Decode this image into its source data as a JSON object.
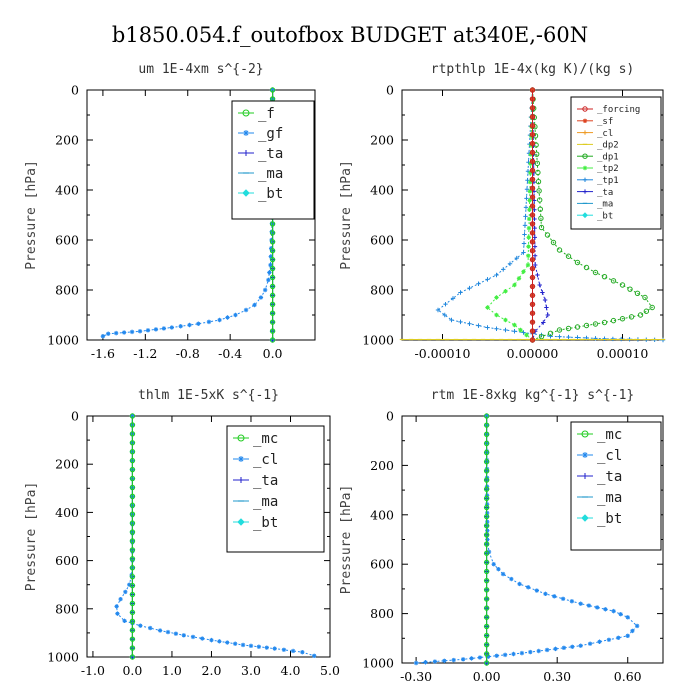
{
  "figure_title": "b1850.054.f_outofbox  BUDGET at340E,-60N",
  "chart_data": [
    {
      "type": "line",
      "title": "um  1E-4xm s^{-2}",
      "ylabel": "Pressure [hPa]",
      "xlim": [
        -1.75,
        0.4
      ],
      "ylim": [
        1000,
        0
      ],
      "xticks": [
        -1.6,
        -1.2,
        -0.8,
        -0.4,
        0.0
      ],
      "xtick_labels": [
        "-1.6",
        "-1.2",
        "-0.8",
        "-0.4",
        "0.0"
      ],
      "yticks": [
        0,
        200,
        400,
        600,
        800,
        1000
      ],
      "ytick_labels": [
        "0",
        "200",
        "400",
        "600",
        "800",
        "1000"
      ],
      "legend_position": "top-right",
      "legend_font": 14,
      "series": [
        {
          "name": "_f",
          "color": "#22cc22",
          "marker": "circle",
          "x": [
            0,
            0
          ],
          "p": [
            0,
            1000
          ]
        },
        {
          "name": "_gf",
          "color": "#2288ee",
          "marker": "star",
          "x": [
            0,
            -0.003,
            -0.01,
            -0.02,
            -0.04,
            -0.07,
            -0.11,
            -0.17,
            -0.25,
            -0.35,
            -0.5,
            -0.7,
            -0.95,
            -1.25,
            -1.55,
            -1.6
          ],
          "p": [
            0,
            500,
            600,
            700,
            760,
            800,
            830,
            860,
            880,
            900,
            920,
            935,
            950,
            965,
            975,
            985
          ]
        },
        {
          "name": "_ta",
          "color": "#2222cc",
          "marker": "plus",
          "x": [
            0,
            0
          ],
          "p": [
            0,
            1000
          ]
        },
        {
          "name": "_ma",
          "color": "#2299cc",
          "marker": "dash",
          "x": [
            0,
            0
          ],
          "p": [
            0,
            1000
          ]
        },
        {
          "name": "_bt",
          "color": "#22dddd",
          "marker": "diamond",
          "x": [
            0,
            0
          ],
          "p": [
            0,
            1000
          ]
        }
      ]
    },
    {
      "type": "line",
      "title": "rtpthlp  1E-4x(kg K)/(kg s)",
      "ylabel": "Pressure [hPa]",
      "xlim": [
        -0.000145,
        0.000145
      ],
      "ylim": [
        1000,
        0
      ],
      "xticks": [
        -0.0001,
        0,
        0.0001
      ],
      "xtick_labels": [
        "-0.00010",
        "0.00000",
        "0.00010"
      ],
      "yticks": [
        0,
        200,
        400,
        600,
        800,
        1000
      ],
      "ytick_labels": [
        "0",
        "200",
        "400",
        "600",
        "800",
        "1000"
      ],
      "legend_position": "top-right",
      "legend_font": 9,
      "series": [
        {
          "name": "_forcing",
          "color": "#cc2222",
          "marker": "circle",
          "x": [
            0,
            0
          ],
          "p": [
            0,
            1000
          ]
        },
        {
          "name": "_sf",
          "color": "#dd4422",
          "marker": "star",
          "x": [
            0,
            0
          ],
          "p": [
            0,
            1000
          ]
        },
        {
          "name": "_cl",
          "color": "#ee9922",
          "marker": "plus",
          "x": [
            0,
            0
          ],
          "p": [
            0,
            1000
          ]
        },
        {
          "name": "_dp2",
          "color": "#ddcc22",
          "marker": "dash",
          "x": [
            -0.000145,
            0.000145
          ],
          "p": [
            998,
            998
          ]
        },
        {
          "name": "_dp1",
          "color": "#22aa22",
          "marker": "circle",
          "x": [
            0,
            1e-05,
            3e-05,
            5e-05,
            7e-05,
            0.0001,
            0.000125,
            0.000133,
            0.00012,
            8e-05,
            3e-05,
            0
          ],
          "p": [
            0,
            550,
            640,
            690,
            730,
            780,
            830,
            870,
            900,
            930,
            960,
            1000
          ]
        },
        {
          "name": "_tp2",
          "color": "#44ee44",
          "marker": "star",
          "x": [
            0,
            -5e-06,
            -2e-05,
            -4e-05,
            -5e-05,
            -4e-05,
            -2e-05,
            0
          ],
          "p": [
            0,
            700,
            780,
            830,
            870,
            900,
            940,
            1000
          ]
        },
        {
          "name": "_tp1",
          "color": "#2288dd",
          "marker": "plus",
          "x": [
            0,
            -1e-05,
            -4e-05,
            -8e-05,
            -0.000105,
            -9e-05,
            -5e-05,
            2e-05,
            8e-05,
            0.000145
          ],
          "p": [
            0,
            650,
            740,
            810,
            880,
            920,
            950,
            985,
            995,
            1000
          ]
        },
        {
          "name": "_ta",
          "color": "#2222cc",
          "marker": "plus",
          "x": [
            0,
            3e-06,
            8e-06,
            1.4e-05,
            1.7e-05,
            1.2e-05,
            3e-06,
            0
          ],
          "p": [
            0,
            700,
            780,
            840,
            900,
            930,
            965,
            1000
          ]
        },
        {
          "name": "_ma",
          "color": "#2299cc",
          "marker": "dash",
          "x": [
            0,
            0
          ],
          "p": [
            0,
            1000
          ]
        },
        {
          "name": "_bt",
          "color": "#22dddd",
          "marker": "diamond",
          "x": [
            0,
            0
          ],
          "p": [
            0,
            1000
          ]
        }
      ]
    },
    {
      "type": "line",
      "title": "thlm  1E-5xK s^{-1}",
      "ylabel": "Pressure [hPa]",
      "xlim": [
        -1.15,
        5.0
      ],
      "ylim": [
        1000,
        0
      ],
      "xticks": [
        -1.0,
        0.0,
        1.0,
        2.0,
        3.0,
        4.0,
        5.0
      ],
      "xtick_labels": [
        "-1.0",
        "0.0",
        "1.0",
        "2.0",
        "3.0",
        "4.0",
        "5.0"
      ],
      "yticks": [
        0,
        200,
        400,
        600,
        800,
        1000
      ],
      "ytick_labels": [
        "0",
        "200",
        "400",
        "600",
        "800",
        "1000"
      ],
      "legend_position": "top-right",
      "legend_font": 14,
      "series": [
        {
          "name": "_mc",
          "color": "#22cc22",
          "marker": "circle",
          "x": [
            0,
            0
          ],
          "p": [
            0,
            1000
          ]
        },
        {
          "name": "_cl",
          "color": "#2288ee",
          "marker": "star",
          "x": [
            0,
            0,
            -0.02,
            -0.08,
            -0.18,
            -0.3,
            -0.4,
            -0.38,
            -0.2,
            0.2,
            0.7,
            1.3,
            2.0,
            2.8,
            3.6,
            4.3,
            4.6
          ],
          "p": [
            0,
            600,
            660,
            700,
            730,
            760,
            790,
            820,
            850,
            870,
            890,
            910,
            930,
            950,
            965,
            980,
            995
          ]
        },
        {
          "name": "_ta",
          "color": "#2222cc",
          "marker": "plus",
          "x": [
            0,
            0
          ],
          "p": [
            0,
            1000
          ]
        },
        {
          "name": "_ma",
          "color": "#2299cc",
          "marker": "dash",
          "x": [
            0,
            0
          ],
          "p": [
            0,
            1000
          ]
        },
        {
          "name": "_bt",
          "color": "#22dddd",
          "marker": "diamond",
          "x": [
            0,
            0
          ],
          "p": [
            0,
            1000
          ]
        }
      ]
    },
    {
      "type": "line",
      "title": "rtm  1E-8xkg kg^{-1} s^{-1}",
      "ylabel": "Pressure [hPa]",
      "xlim": [
        -0.36,
        0.75
      ],
      "ylim": [
        1000,
        0
      ],
      "xticks": [
        -0.3,
        0.0,
        0.3,
        0.6
      ],
      "xtick_labels": [
        "-0.30",
        "0.00",
        "0.30",
        "0.60"
      ],
      "yticks": [
        0,
        200,
        400,
        600,
        800,
        1000
      ],
      "ytick_labels": [
        "0",
        "200",
        "400",
        "600",
        "800",
        "1000"
      ],
      "legend_position": "top-right",
      "legend_font": 14,
      "series": [
        {
          "name": "_mc",
          "color": "#22cc22",
          "marker": "circle",
          "x": [
            0,
            0
          ],
          "p": [
            0,
            1000
          ]
        },
        {
          "name": "_cl",
          "color": "#2288ee",
          "marker": "star",
          "x": [
            0,
            0.003,
            0.01,
            0.03,
            0.07,
            0.14,
            0.25,
            0.4,
            0.54,
            0.6,
            0.64,
            0.6,
            0.4,
            0.15,
            -0.1,
            -0.3
          ],
          "p": [
            0,
            500,
            550,
            600,
            640,
            680,
            720,
            760,
            790,
            815,
            850,
            890,
            930,
            960,
            985,
            1000
          ]
        },
        {
          "name": "_ta",
          "color": "#2222cc",
          "marker": "plus",
          "x": [
            0,
            0
          ],
          "p": [
            0,
            1000
          ]
        },
        {
          "name": "_ma",
          "color": "#2299cc",
          "marker": "dash",
          "x": [
            0,
            0
          ],
          "p": [
            0,
            1000
          ]
        },
        {
          "name": "_bt",
          "color": "#22dddd",
          "marker": "diamond",
          "x": [
            0,
            0
          ],
          "p": [
            0,
            1000
          ]
        }
      ]
    }
  ]
}
